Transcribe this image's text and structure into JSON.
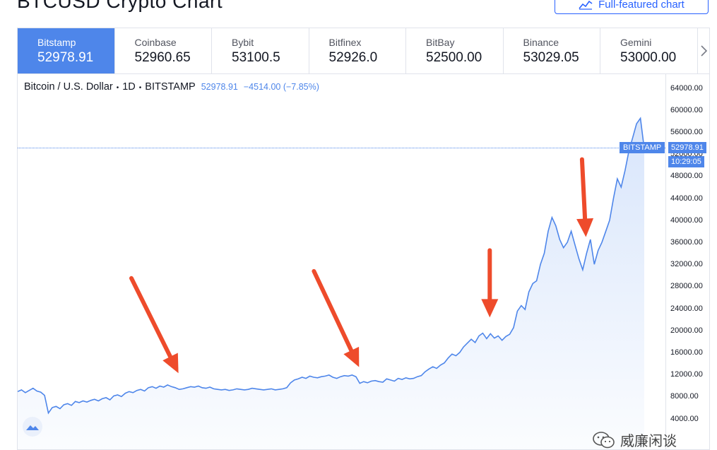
{
  "header": {
    "title": "BTCUSD Crypto Chart",
    "full_button_label": "Full-featured chart"
  },
  "tabs": [
    {
      "exchange": "Bitstamp",
      "price": "52978.91",
      "active": true
    },
    {
      "exchange": "Coinbase",
      "price": "52960.65",
      "active": false
    },
    {
      "exchange": "Bybit",
      "price": "53100.5",
      "active": false
    },
    {
      "exchange": "Bitfinex",
      "price": "52926.0",
      "active": false
    },
    {
      "exchange": "BitBay",
      "price": "52500.00",
      "active": false
    },
    {
      "exchange": "Binance",
      "price": "53029.05",
      "active": false
    },
    {
      "exchange": "Gemini",
      "price": "53000.00",
      "active": false
    }
  ],
  "legend": {
    "symbol": "Bitcoin / U.S. Dollar",
    "interval": "1D",
    "exchange": "BITSTAMP",
    "price": "52978.91",
    "change": "−4514.00 (−7.85%)"
  },
  "price_tags": {
    "exchange": "BITSTAMP",
    "price": "52978.91",
    "countdown": "10:29:05"
  },
  "watermark": {
    "text": "威廉闲谈"
  },
  "chart_data": {
    "type": "area",
    "title": "",
    "xlabel": "",
    "ylabel": "",
    "ylim": [
      0,
      66000
    ],
    "y_ticks": [
      "64000.00",
      "60000.00",
      "56000.00",
      "52000.00",
      "48000.00",
      "44000.00",
      "40000.00",
      "36000.00",
      "32000.00",
      "28000.00",
      "24000.00",
      "20000.00",
      "16000.00",
      "12000.00",
      "8000.00",
      "4000.00"
    ],
    "y_tick_values": [
      64000,
      60000,
      56000,
      52000,
      48000,
      44000,
      40000,
      36000,
      32000,
      28000,
      24000,
      20000,
      16000,
      12000,
      8000,
      4000
    ],
    "current_price": 52978.91,
    "line_color": "#4e86ea",
    "fill_color": "#d6e4fb",
    "series": [
      {
        "values": [
          8900,
          9200,
          8700,
          9100,
          9500,
          9000,
          8800,
          8200,
          5000,
          6000,
          6200,
          5800,
          6500,
          6700,
          6400,
          7100,
          6900,
          7200,
          7000,
          7300,
          7500,
          7200,
          7600,
          7800,
          7400,
          8100,
          8300,
          8000,
          8600,
          8900,
          8700,
          9100,
          9300,
          9000,
          9600,
          9800,
          9500,
          9900,
          9700,
          10100,
          9800,
          9600,
          9300,
          9400,
          9600,
          9800,
          9700,
          9900,
          9600,
          9500,
          9700,
          9400,
          9300,
          9200,
          9300,
          9100,
          9200,
          9400,
          9300,
          9200,
          9300,
          9500,
          9400,
          9300,
          9200,
          9300,
          9400,
          9200,
          9300,
          9400,
          9600,
          10500,
          11000,
          11200,
          11500,
          11300,
          11700,
          11500,
          11400,
          11600,
          11700,
          11900,
          11500,
          11300,
          11600,
          11800,
          11700,
          11900,
          11600,
          10400,
          10700,
          10500,
          10800,
          10900,
          10700,
          10600,
          11200,
          11000,
          10800,
          11300,
          11100,
          11400,
          11200,
          11300,
          11600,
          11800,
          12500,
          13000,
          13400,
          13100,
          13700,
          14100,
          15000,
          15700,
          15400,
          16000,
          17000,
          17700,
          18400,
          17800,
          19000,
          19500,
          18500,
          19400,
          18600,
          19000,
          18200,
          18900,
          19300,
          20500,
          23500,
          24500,
          23800,
          27000,
          28500,
          29000,
          32000,
          34000,
          38000,
          40500,
          39000,
          36500,
          35000,
          36000,
          38000,
          35500,
          33000,
          31000,
          34000,
          36500,
          32000,
          34500,
          36000,
          38000,
          40000,
          44000,
          47500,
          46000,
          49000,
          52500,
          55000,
          57500,
          58500,
          52978
        ]
      }
    ],
    "annotations": [
      {
        "type": "arrow",
        "color": "#ee4b2b",
        "x_index": 42,
        "description_value": 9800
      },
      {
        "type": "arrow",
        "color": "#ee4b2b",
        "x_index": 89,
        "description_value": 11700
      },
      {
        "type": "arrow",
        "color": "#ee4b2b",
        "x_index": 123,
        "description_value": 19500
      },
      {
        "type": "arrow",
        "color": "#ee4b2b",
        "x_index": 148,
        "description_value": 36000
      }
    ]
  }
}
